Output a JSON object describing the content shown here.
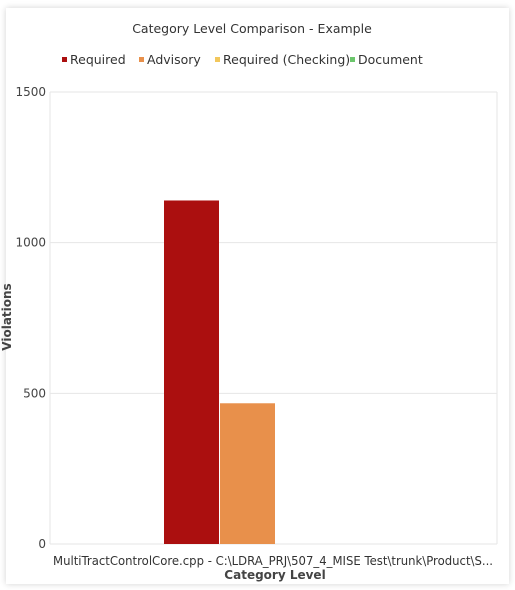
{
  "chart_data": {
    "type": "bar",
    "title": "Category Level Comparison - Example",
    "xlabel": "Category Level",
    "ylabel": "Violations",
    "categories": [
      "MultiTractControlCore.cpp - C:\\LDRA_PRJ\\507_4_MISE Test\\trunk\\Product\\S..."
    ],
    "series": [
      {
        "name": "Required",
        "color": "#ab0f0f",
        "values": [
          1140
        ]
      },
      {
        "name": "Advisory",
        "color": "#e8904b",
        "values": [
          467
        ]
      },
      {
        "name": "Required (Checking)",
        "color": "#f2c75c",
        "values": [
          0
        ]
      },
      {
        "name": "Document",
        "color": "#6cc66c",
        "values": [
          0
        ]
      }
    ],
    "ylim": [
      0,
      1500
    ],
    "yticks": [
      0,
      500,
      1000,
      1500
    ],
    "grid": true,
    "legend_position": "top"
  }
}
